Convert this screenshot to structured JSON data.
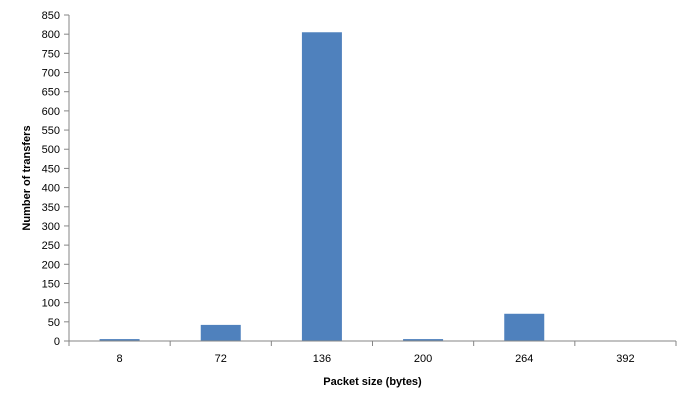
{
  "chart_data": {
    "type": "bar",
    "title": "",
    "xlabel": "Packet size (bytes)",
    "ylabel": "Number of transfers",
    "categories": [
      "8",
      "72",
      "136",
      "200",
      "264",
      "392"
    ],
    "series": [
      {
        "values": [
          5,
          42,
          805,
          5,
          71,
          0
        ],
        "color": "#4f81bd"
      }
    ],
    "ylim": [
      0,
      850
    ],
    "ytick_step": 50,
    "grid": false,
    "legend": "none"
  }
}
